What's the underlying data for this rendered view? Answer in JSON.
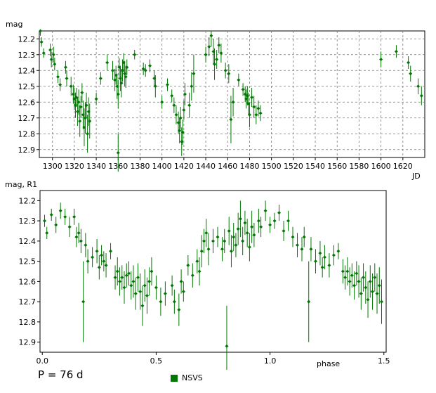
{
  "period_text": "P = 76 d",
  "legend": {
    "label": "NSVS",
    "color": "#007700"
  },
  "chart_data": [
    {
      "type": "scatter",
      "ylabel": "mag",
      "xlabel": "JD",
      "xlim": [
        1288,
        1640
      ],
      "ylim": [
        12.95,
        12.15
      ],
      "y_inverted": true,
      "grid": true,
      "xticks": [
        1300,
        1320,
        1340,
        1360,
        1380,
        1400,
        1420,
        1440,
        1460,
        1480,
        1500,
        1520,
        1540,
        1560,
        1580,
        1600,
        1620
      ],
      "yticks": [
        12.2,
        12.3,
        12.4,
        12.5,
        12.6,
        12.7,
        12.8,
        12.9
      ],
      "series": [
        {
          "name": "NSVS",
          "color": "#007700",
          "points": [
            [
              1289,
              12.15,
              0.03
            ],
            [
              1290,
              12.22,
              0.03
            ],
            [
              1292,
              12.29,
              0.03
            ],
            [
              1298,
              12.27,
              0.04
            ],
            [
              1299,
              12.33,
              0.05
            ],
            [
              1301,
              12.3,
              0.05
            ],
            [
              1302,
              12.36,
              0.04
            ],
            [
              1305,
              12.44,
              0.04
            ],
            [
              1307,
              12.49,
              0.04
            ],
            [
              1312,
              12.38,
              0.04
            ],
            [
              1313,
              12.45,
              0.05
            ],
            [
              1317,
              12.5,
              0.06
            ],
            [
              1319,
              12.55,
              0.06
            ],
            [
              1320,
              12.58,
              0.07
            ],
            [
              1321,
              12.62,
              0.08
            ],
            [
              1322,
              12.57,
              0.06
            ],
            [
              1323,
              12.66,
              0.09
            ],
            [
              1324,
              12.6,
              0.08
            ],
            [
              1325,
              12.72,
              0.1
            ],
            [
              1326,
              12.63,
              0.07
            ],
            [
              1327,
              12.54,
              0.06
            ],
            [
              1328,
              12.68,
              0.09
            ],
            [
              1329,
              12.76,
              0.12
            ],
            [
              1330,
              12.7,
              0.1
            ],
            [
              1331,
              12.62,
              0.08
            ],
            [
              1332,
              12.8,
              0.12
            ],
            [
              1333,
              12.66,
              0.09
            ],
            [
              1334,
              12.72,
              0.11
            ],
            [
              1340,
              12.58,
              0.04
            ],
            [
              1344,
              12.45,
              0.04
            ],
            [
              1350,
              12.35,
              0.05
            ],
            [
              1355,
              12.4,
              0.06
            ],
            [
              1357,
              12.46,
              0.07
            ],
            [
              1358,
              12.43,
              0.06
            ],
            [
              1359,
              12.5,
              0.08
            ],
            [
              1360,
              12.55,
              0.09
            ],
            [
              1361,
              12.38,
              0.06
            ],
            [
              1362,
              12.45,
              0.08
            ],
            [
              1363,
              12.48,
              0.09
            ],
            [
              1364,
              12.4,
              0.07
            ],
            [
              1365,
              12.35,
              0.06
            ],
            [
              1366,
              12.42,
              0.08
            ],
            [
              1367,
              12.44,
              0.07
            ],
            [
              1368,
              12.38,
              0.05
            ],
            [
              1360,
              12.92,
              0.12
            ],
            [
              1375,
              12.3,
              0.03
            ],
            [
              1383,
              12.39,
              0.04
            ],
            [
              1385,
              12.4,
              0.04
            ],
            [
              1389,
              12.37,
              0.04
            ],
            [
              1393,
              12.45,
              0.05
            ],
            [
              1394,
              12.5,
              0.07
            ],
            [
              1400,
              12.6,
              0.04
            ],
            [
              1405,
              12.49,
              0.04
            ],
            [
              1409,
              12.56,
              0.04
            ],
            [
              1411,
              12.62,
              0.05
            ],
            [
              1413,
              12.68,
              0.06
            ],
            [
              1415,
              12.73,
              0.07
            ],
            [
              1416,
              12.78,
              0.08
            ],
            [
              1417,
              12.7,
              0.07
            ],
            [
              1418,
              12.85,
              0.09
            ],
            [
              1419,
              12.79,
              0.08
            ],
            [
              1420,
              12.65,
              0.06
            ],
            [
              1421,
              12.55,
              0.07
            ],
            [
              1425,
              12.62,
              0.08
            ],
            [
              1427,
              12.5,
              0.09
            ],
            [
              1429,
              12.42,
              0.12
            ],
            [
              1440,
              12.3,
              0.05
            ],
            [
              1443,
              12.25,
              0.06
            ],
            [
              1445,
              12.18,
              0.07
            ],
            [
              1447,
              12.28,
              0.08
            ],
            [
              1448,
              12.36,
              0.1
            ],
            [
              1450,
              12.33,
              0.06
            ],
            [
              1452,
              12.24,
              0.05
            ],
            [
              1454,
              12.29,
              0.06
            ],
            [
              1458,
              12.4,
              0.05
            ],
            [
              1461,
              12.42,
              0.06
            ],
            [
              1463,
              12.71,
              0.15
            ],
            [
              1465,
              12.6,
              0.09
            ],
            [
              1470,
              12.46,
              0.04
            ],
            [
              1474,
              12.52,
              0.04
            ],
            [
              1476,
              12.55,
              0.05
            ],
            [
              1477,
              12.58,
              0.06
            ],
            [
              1478,
              12.56,
              0.06
            ],
            [
              1479,
              12.61,
              0.07
            ],
            [
              1480,
              12.68,
              0.08
            ],
            [
              1482,
              12.57,
              0.06
            ],
            [
              1484,
              12.63,
              0.07
            ],
            [
              1486,
              12.68,
              0.06
            ],
            [
              1488,
              12.64,
              0.05
            ],
            [
              1490,
              12.67,
              0.05
            ],
            [
              1600,
              12.33,
              0.05
            ],
            [
              1614,
              12.28,
              0.04
            ],
            [
              1625,
              12.35,
              0.04
            ],
            [
              1627,
              12.42,
              0.05
            ],
            [
              1634,
              12.5,
              0.05
            ],
            [
              1637,
              12.56,
              0.06
            ]
          ]
        }
      ]
    },
    {
      "type": "scatter",
      "ylabel": "mag, R1",
      "xlabel": "phase",
      "xlim": [
        -0.01,
        1.51
      ],
      "ylim": [
        12.95,
        12.15
      ],
      "y_inverted": true,
      "grid": false,
      "xticks": [
        0.0,
        0.5,
        1.0,
        1.5
      ],
      "xtick_labels": [
        "0.0",
        "0.5",
        "1.0",
        "1.5"
      ],
      "yticks": [
        12.2,
        12.3,
        12.4,
        12.5,
        12.6,
        12.7,
        12.8,
        12.9
      ],
      "series": [
        {
          "name": "NSVS",
          "color": "#007700",
          "points": [
            [
              0.01,
              12.3,
              0.03
            ],
            [
              0.02,
              12.36,
              0.03
            ],
            [
              0.04,
              12.27,
              0.03
            ],
            [
              0.06,
              12.32,
              0.04
            ],
            [
              0.08,
              12.25,
              0.04
            ],
            [
              0.1,
              12.28,
              0.04
            ],
            [
              0.12,
              12.33,
              0.05
            ],
            [
              0.14,
              12.28,
              0.04
            ],
            [
              0.15,
              12.38,
              0.05
            ],
            [
              0.16,
              12.36,
              0.05
            ],
            [
              0.17,
              12.4,
              0.06
            ],
            [
              0.18,
              12.7,
              0.2
            ],
            [
              0.19,
              12.42,
              0.06
            ],
            [
              0.2,
              12.5,
              0.06
            ],
            [
              0.22,
              12.48,
              0.05
            ],
            [
              0.24,
              12.45,
              0.06
            ],
            [
              0.25,
              12.53,
              0.06
            ],
            [
              0.26,
              12.47,
              0.05
            ],
            [
              0.27,
              12.5,
              0.05
            ],
            [
              0.28,
              12.52,
              0.06
            ],
            [
              0.3,
              12.45,
              0.04
            ],
            [
              0.32,
              12.58,
              0.06
            ],
            [
              0.33,
              12.55,
              0.07
            ],
            [
              0.34,
              12.6,
              0.07
            ],
            [
              0.35,
              12.58,
              0.06
            ],
            [
              0.36,
              12.63,
              0.08
            ],
            [
              0.37,
              12.57,
              0.06
            ],
            [
              0.38,
              12.56,
              0.06
            ],
            [
              0.39,
              12.62,
              0.07
            ],
            [
              0.4,
              12.6,
              0.08
            ],
            [
              0.41,
              12.66,
              0.08
            ],
            [
              0.42,
              12.58,
              0.07
            ],
            [
              0.43,
              12.65,
              0.09
            ],
            [
              0.44,
              12.72,
              0.1
            ],
            [
              0.45,
              12.62,
              0.08
            ],
            [
              0.46,
              12.67,
              0.09
            ],
            [
              0.47,
              12.6,
              0.07
            ],
            [
              0.48,
              12.55,
              0.07
            ],
            [
              0.5,
              12.63,
              0.06
            ],
            [
              0.52,
              12.7,
              0.07
            ],
            [
              0.54,
              12.66,
              0.06
            ],
            [
              0.57,
              12.62,
              0.05
            ],
            [
              0.58,
              12.7,
              0.06
            ],
            [
              0.6,
              12.74,
              0.08
            ],
            [
              0.61,
              12.6,
              0.06
            ],
            [
              0.62,
              12.65,
              0.05
            ],
            [
              0.64,
              12.52,
              0.05
            ],
            [
              0.66,
              12.57,
              0.06
            ],
            [
              0.68,
              12.5,
              0.06
            ],
            [
              0.69,
              12.55,
              0.07
            ],
            [
              0.7,
              12.45,
              0.08
            ],
            [
              0.71,
              12.4,
              0.06
            ],
            [
              0.72,
              12.36,
              0.07
            ],
            [
              0.73,
              12.44,
              0.08
            ],
            [
              0.75,
              12.4,
              0.06
            ],
            [
              0.77,
              12.38,
              0.05
            ],
            [
              0.79,
              12.44,
              0.06
            ],
            [
              0.8,
              12.4,
              0.06
            ],
            [
              0.81,
              12.92,
              0.2
            ],
            [
              0.82,
              12.35,
              0.07
            ],
            [
              0.83,
              12.45,
              0.08
            ],
            [
              0.84,
              12.38,
              0.07
            ],
            [
              0.85,
              12.42,
              0.06
            ],
            [
              0.86,
              12.34,
              0.08
            ],
            [
              0.87,
              12.29,
              0.09
            ],
            [
              0.88,
              12.4,
              0.07
            ],
            [
              0.89,
              12.31,
              0.06
            ],
            [
              0.9,
              12.36,
              0.07
            ],
            [
              0.91,
              12.43,
              0.07
            ],
            [
              0.92,
              12.33,
              0.08
            ],
            [
              0.93,
              12.37,
              0.06
            ],
            [
              0.95,
              12.3,
              0.06
            ],
            [
              0.96,
              12.33,
              0.05
            ],
            [
              0.98,
              12.25,
              0.05
            ],
            [
              1.0,
              12.32,
              0.04
            ],
            [
              1.02,
              12.3,
              0.04
            ],
            [
              1.04,
              12.26,
              0.04
            ],
            [
              1.06,
              12.35,
              0.05
            ],
            [
              1.08,
              12.3,
              0.05
            ],
            [
              1.1,
              12.38,
              0.05
            ],
            [
              1.12,
              12.42,
              0.06
            ],
            [
              1.14,
              12.44,
              0.06
            ],
            [
              1.15,
              12.38,
              0.05
            ],
            [
              1.17,
              12.7,
              0.2
            ],
            [
              1.18,
              12.44,
              0.06
            ],
            [
              1.2,
              12.5,
              0.06
            ],
            [
              1.22,
              12.46,
              0.06
            ],
            [
              1.23,
              12.53,
              0.05
            ],
            [
              1.24,
              12.48,
              0.06
            ],
            [
              1.26,
              12.52,
              0.06
            ],
            [
              1.28,
              12.47,
              0.05
            ],
            [
              1.3,
              12.45,
              0.04
            ],
            [
              1.32,
              12.55,
              0.06
            ],
            [
              1.33,
              12.58,
              0.06
            ],
            [
              1.34,
              12.55,
              0.07
            ],
            [
              1.35,
              12.6,
              0.07
            ],
            [
              1.36,
              12.57,
              0.06
            ],
            [
              1.37,
              12.62,
              0.07
            ],
            [
              1.38,
              12.56,
              0.06
            ],
            [
              1.39,
              12.6,
              0.08
            ],
            [
              1.4,
              12.66,
              0.08
            ],
            [
              1.41,
              12.58,
              0.07
            ],
            [
              1.42,
              12.63,
              0.08
            ],
            [
              1.43,
              12.69,
              0.09
            ],
            [
              1.44,
              12.6,
              0.08
            ],
            [
              1.45,
              12.65,
              0.09
            ],
            [
              1.46,
              12.58,
              0.07
            ],
            [
              1.47,
              12.66,
              0.1
            ],
            [
              1.48,
              12.62,
              0.09
            ],
            [
              1.49,
              12.7,
              0.11
            ]
          ]
        }
      ]
    }
  ]
}
